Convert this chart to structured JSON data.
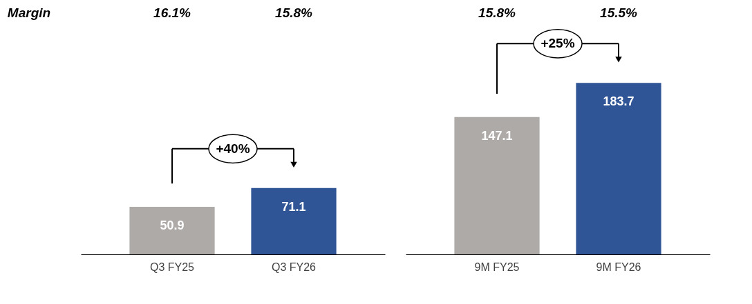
{
  "chart_data": [
    {
      "type": "bar",
      "categories": [
        "Q3 FY25",
        "Q3 FY26"
      ],
      "values": [
        50.9,
        71.1
      ],
      "colors": [
        "#aeaaa8",
        "#2f5597"
      ],
      "tick_labels": "x",
      "data_labels": true,
      "annotations": [
        "16.1%",
        "15.8%",
        "Margin",
        "+40%"
      ]
    },
    {
      "type": "bar",
      "categories": [
        "9M FY25",
        "9M FY26"
      ],
      "values": [
        147.1,
        183.7
      ],
      "colors": [
        "#aeaaa8",
        "#2f5597"
      ],
      "tick_labels": "x",
      "data_labels": true,
      "annotations": [
        "15.8%",
        "15.5%",
        "+25%"
      ]
    }
  ]
}
